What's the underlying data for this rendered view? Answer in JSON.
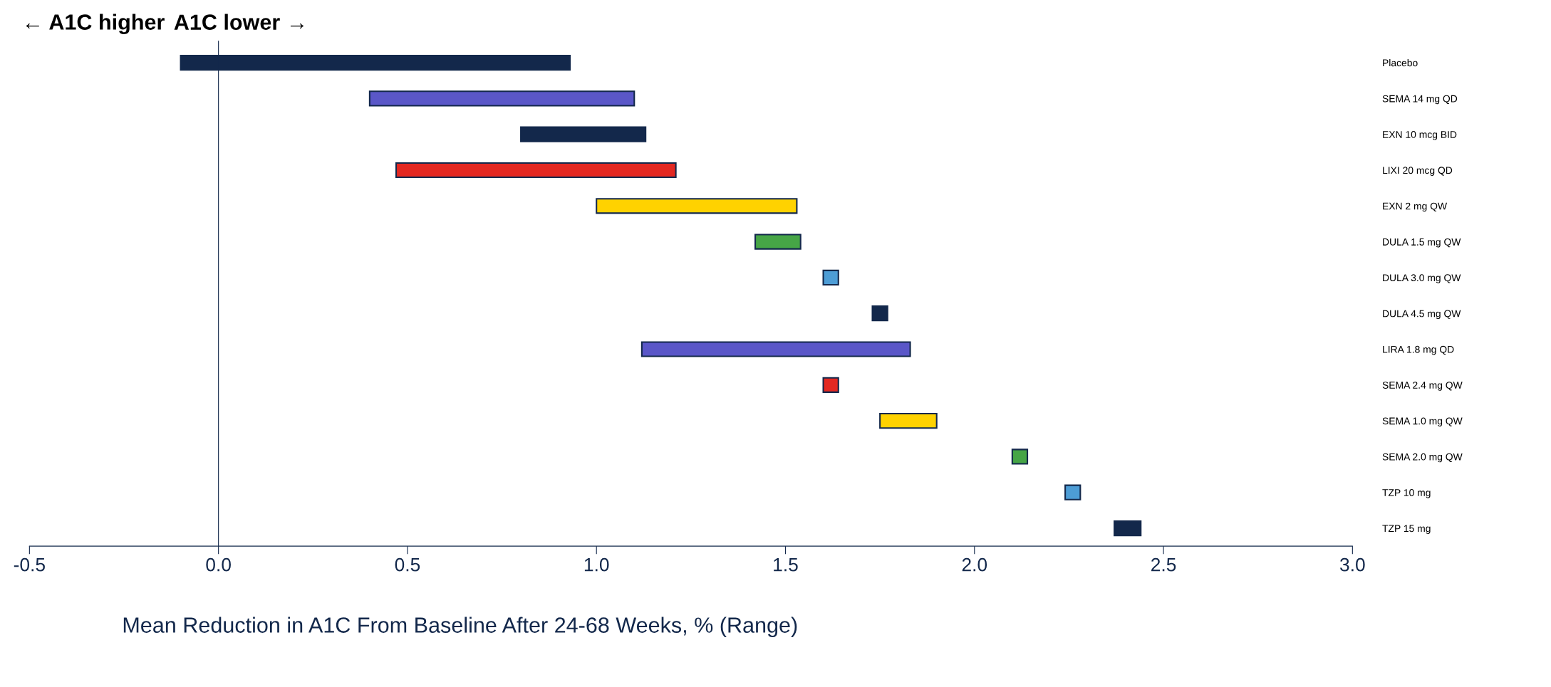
{
  "chart_data": {
    "type": "bar",
    "orientation": "horizontal",
    "xlabel": "Mean Reduction in A1C From Baseline After 24-68 Weeks, % (Range)",
    "annotations": [
      "← A1C higher",
      "A1C lower →"
    ],
    "categories": [
      "Placebo",
      "SEMA 14 mg QD",
      "EXN 10 mcg BID",
      "LIXI 20 mcg QD",
      "EXN 2 mg QW",
      "DULA 1.5 mg QW",
      "DULA 3.0 mg QW",
      "DULA 4.5 mg QW",
      "LIRA 1.8 mg QD",
      "SEMA 2.4 mg QW",
      "SEMA 1.0 mg QW",
      "SEMA 2.0 mg QW",
      "TZP 10 mg",
      "TZP 15 mg"
    ],
    "base": [
      -0.1,
      0.4,
      0.8,
      0.47,
      1.0,
      1.42,
      1.6,
      1.73,
      1.12,
      1.6,
      1.75,
      2.1,
      2.24,
      2.37
    ],
    "values": [
      1.03,
      0.7,
      0.33,
      0.74,
      0.53,
      0.12,
      0.04,
      0.04,
      0.71,
      0.04,
      0.15,
      0.04,
      0.04,
      0.07
    ],
    "colors": [
      "#13284b",
      "#5a57c8",
      "#13284b",
      "#e32822",
      "#ffd200",
      "#46a546",
      "#4d9dd6",
      "#13284b",
      "#5a57c8",
      "#e32822",
      "#ffd200",
      "#46a546",
      "#4d9dd6",
      "#13284b"
    ],
    "xlim": [
      -0.5,
      3.0
    ],
    "xticks": [
      {
        "value": -0.5,
        "label": "-0.5"
      },
      {
        "value": 0,
        "label": "0.0"
      },
      {
        "value": 0.5,
        "label": "0.5"
      },
      {
        "value": 1,
        "label": "1.0"
      },
      {
        "value": 1.5,
        "label": "1.5"
      },
      {
        "value": 2,
        "label": "2.0"
      },
      {
        "value": 2.5,
        "label": "2.5"
      },
      {
        "value": 3,
        "label": "3.0"
      }
    ],
    "grid": false,
    "legend": false
  }
}
